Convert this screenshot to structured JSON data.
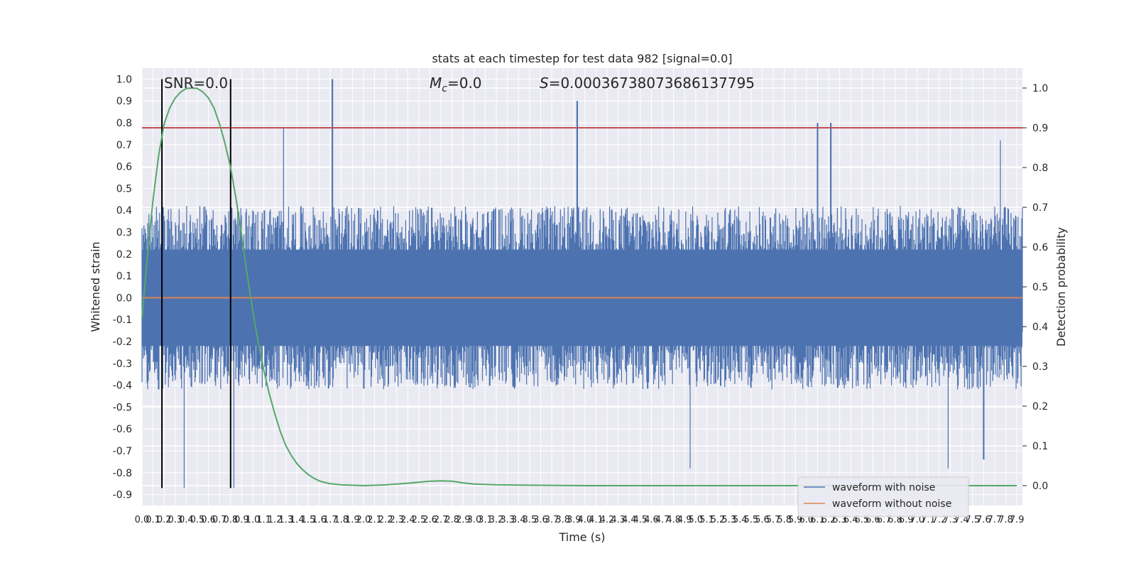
{
  "chart_data": {
    "type": "line",
    "title": "stats at each timestep for test data 982 [signal=0.0]",
    "xlabel": "Time (s)",
    "ylabel": "Whitened strain",
    "y2label": "Detection probability",
    "annotations": {
      "snr": "SNR=0.0",
      "mc_symbol": "M",
      "mc_sub": "c",
      "mc_value": "=0.0",
      "s_symbol": "S",
      "s_value": "=0.00036738073686137795"
    },
    "xlim": [
      0.0,
      7.95
    ],
    "ylim": [
      -0.95,
      1.05
    ],
    "y2lim": [
      -0.05,
      1.05
    ],
    "x_ticks": [
      "0.0",
      "0.1",
      "0.2",
      "0.3",
      "0.4",
      "0.5",
      "0.6",
      "0.7",
      "0.8",
      "0.9",
      "1.0",
      "1.1",
      "1.2",
      "1.3",
      "1.4",
      "1.5",
      "1.6",
      "1.7",
      "1.8",
      "1.9",
      "2.0",
      "2.1",
      "2.2",
      "2.3",
      "2.4",
      "2.5",
      "2.6",
      "2.7",
      "2.8",
      "2.9",
      "3.0",
      "3.1",
      "3.2",
      "3.3",
      "3.4",
      "3.5",
      "3.6",
      "3.7",
      "3.8",
      "3.9",
      "4.0",
      "4.1",
      "4.2",
      "4.3",
      "4.4",
      "4.5",
      "4.6",
      "4.7",
      "4.8",
      "4.9",
      "5.0",
      "5.1",
      "5.2",
      "5.3",
      "5.4",
      "5.5",
      "5.6",
      "5.7",
      "5.8",
      "5.9",
      "6.0",
      "6.1",
      "6.2",
      "6.3",
      "6.4",
      "6.5",
      "6.6",
      "6.7",
      "6.8",
      "6.9",
      "7.0",
      "7.1",
      "7.2",
      "7.3",
      "7.4",
      "7.5",
      "7.6",
      "7.7",
      "7.8",
      "7.9"
    ],
    "y_ticks": [
      "1.0",
      "0.9",
      "0.8",
      "0.7",
      "0.6",
      "0.5",
      "0.4",
      "0.3",
      "0.2",
      "0.1",
      "0.0",
      "-0.1",
      "-0.2",
      "-0.3",
      "-0.4",
      "-0.5",
      "-0.6",
      "-0.7",
      "-0.8",
      "-0.9"
    ],
    "y2_ticks": [
      "1.0",
      "0.9",
      "0.8",
      "0.7",
      "0.6",
      "0.5",
      "0.4",
      "0.3",
      "0.2",
      "0.1",
      "0.0"
    ],
    "grid": true,
    "legend_position": "lower-right",
    "series": [
      {
        "name": "waveform with noise",
        "color": "#4c72b0",
        "axis": "left",
        "description_kind": "noise",
        "envelope_upper_typical": 0.35,
        "envelope_lower_typical": -0.35,
        "peaks": [
          {
            "x": 1.72,
            "y": 1.0
          },
          {
            "x": 3.93,
            "y": 0.9
          },
          {
            "x": 1.28,
            "y": 0.78
          },
          {
            "x": 6.1,
            "y": 0.8
          },
          {
            "x": 6.22,
            "y": 0.8
          },
          {
            "x": 7.75,
            "y": 0.72
          },
          {
            "x": 0.38,
            "y": -0.87
          },
          {
            "x": 0.83,
            "y": -0.87
          },
          {
            "x": 4.95,
            "y": -0.78
          },
          {
            "x": 7.28,
            "y": -0.78
          },
          {
            "x": 7.6,
            "y": -0.74
          }
        ]
      },
      {
        "name": "waveform without noise",
        "color": "#dd8452",
        "axis": "left",
        "x": [
          0.0,
          7.95
        ],
        "y": [
          0.0,
          0.0
        ]
      },
      {
        "name": "",
        "color": "#55a868",
        "axis": "right",
        "x": [
          0.0,
          0.05,
          0.1,
          0.15,
          0.2,
          0.25,
          0.3,
          0.35,
          0.4,
          0.45,
          0.5,
          0.55,
          0.6,
          0.65,
          0.7,
          0.75,
          0.8,
          0.85,
          0.9,
          0.95,
          1.0,
          1.05,
          1.1,
          1.15,
          1.2,
          1.25,
          1.3,
          1.35,
          1.4,
          1.45,
          1.5,
          1.55,
          1.6,
          1.65,
          1.7,
          1.8,
          1.9,
          2.0,
          2.2,
          2.4,
          2.6,
          2.7,
          2.8,
          2.9,
          3.0,
          3.2,
          3.5,
          4.0,
          5.0,
          6.0,
          7.0,
          7.9
        ],
        "y": [
          0.42,
          0.58,
          0.72,
          0.83,
          0.91,
          0.95,
          0.975,
          0.99,
          0.999,
          1.0,
          0.999,
          0.99,
          0.975,
          0.95,
          0.91,
          0.86,
          0.8,
          0.72,
          0.63,
          0.53,
          0.44,
          0.36,
          0.29,
          0.23,
          0.18,
          0.135,
          0.1,
          0.075,
          0.055,
          0.04,
          0.028,
          0.019,
          0.012,
          0.008,
          0.005,
          0.002,
          0.001,
          0.0,
          0.002,
          0.006,
          0.011,
          0.012,
          0.011,
          0.007,
          0.004,
          0.002,
          0.001,
          0.0,
          0.0,
          0.0,
          0.0,
          0.0
        ]
      }
    ],
    "hlines": [
      {
        "y2": 0.9,
        "color": "#c44e52"
      }
    ],
    "vlines": [
      {
        "x": 0.18,
        "color": "#000000"
      },
      {
        "x": 0.8,
        "color": "#000000"
      }
    ]
  }
}
